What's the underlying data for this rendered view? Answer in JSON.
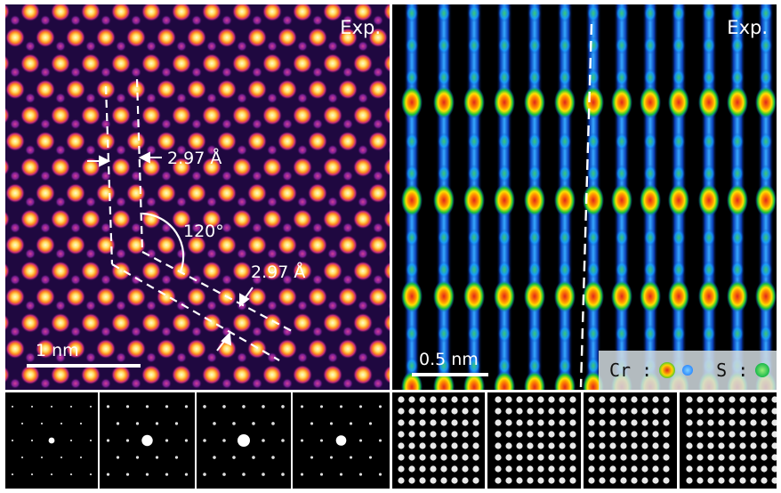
{
  "left_panel": {
    "label": "Exp.",
    "distance_1": "2.97 Å",
    "distance_2": "2.97 Å",
    "angle": "120°",
    "scale_bar": "1 nm"
  },
  "right_panel": {
    "label": "Exp.",
    "scale_bar": "0.5 nm",
    "legend": {
      "cr_label": "Cr :",
      "s_label": "S :"
    }
  },
  "colors": {
    "cr_outer": "#19c23a",
    "cr_mid": "#ffd400",
    "cr_core": "#e0261c",
    "cr_ring_blue": "#2e8cff",
    "s": "#18b84a"
  },
  "bottom_strip": {
    "diffraction_patterns": 4,
    "simulated_lattices": 4
  }
}
